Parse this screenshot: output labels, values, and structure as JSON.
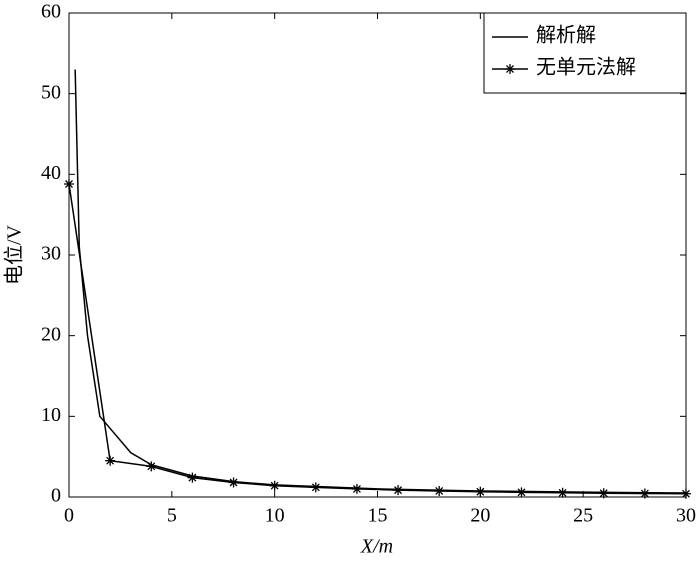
{
  "chart_data": {
    "type": "line",
    "xlabel": "X/m",
    "ylabel": "电位/V",
    "xlim": [
      0,
      30
    ],
    "ylim": [
      0,
      60
    ],
    "xticks": [
      0,
      5,
      10,
      15,
      20,
      25,
      30
    ],
    "yticks": [
      0,
      10,
      20,
      30,
      40,
      50,
      60
    ],
    "legend": "upper right",
    "series": [
      {
        "name": "解析解",
        "color": "#000000",
        "marker": "none",
        "x": [
          0.3,
          0.5,
          0.9,
          1.5,
          2,
          3,
          4,
          6,
          8,
          10,
          15,
          20,
          25,
          30
        ],
        "values": [
          53,
          31,
          20,
          10,
          8.5,
          5.5,
          4,
          2.6,
          1.9,
          1.5,
          1.0,
          0.75,
          0.6,
          0.5
        ]
      },
      {
        "name": "无单元法解",
        "color": "#000000",
        "marker": "asterisk",
        "x": [
          0,
          2,
          4,
          6,
          8,
          10,
          12,
          14,
          16,
          18,
          20,
          22,
          24,
          26,
          28,
          30
        ],
        "values": [
          38.8,
          4.5,
          3.8,
          2.4,
          1.8,
          1.4,
          1.2,
          1.0,
          0.85,
          0.75,
          0.65,
          0.58,
          0.52,
          0.47,
          0.43,
          0.4
        ]
      }
    ]
  }
}
